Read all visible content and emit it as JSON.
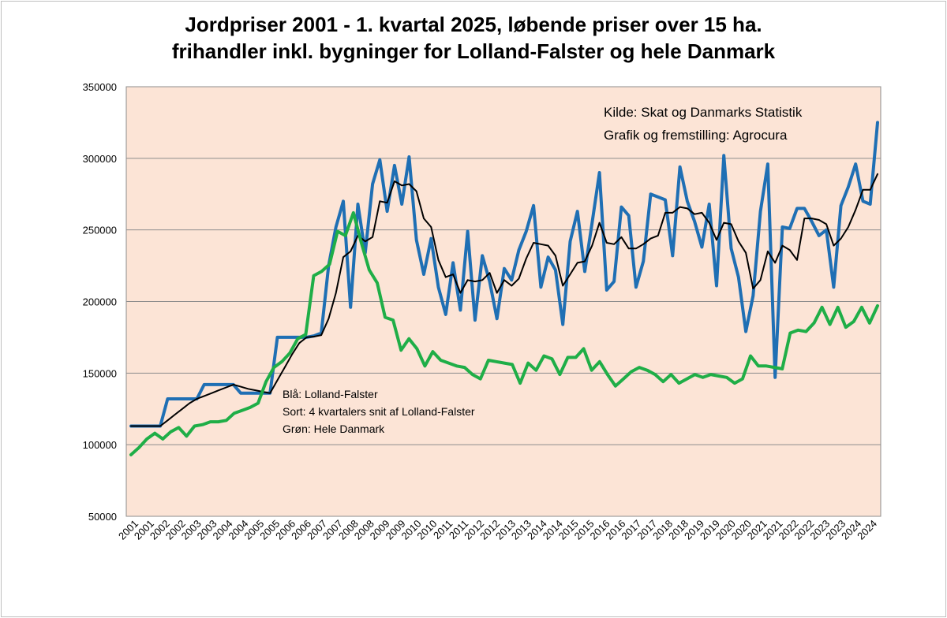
{
  "chart_data": {
    "type": "line",
    "title_line1": "Jordpriser 2001 - 1. kvartal 2025, løbende priser over 15 ha.",
    "title_line2": "frihandler inkl. bygninger for Lolland-Falster og hele Danmark",
    "xlabel": "",
    "ylabel": "",
    "ylim": [
      50000,
      350000
    ],
    "yticks": [
      50000,
      100000,
      150000,
      200000,
      250000,
      300000,
      350000
    ],
    "grid": true,
    "plot_background": "#fce4d6",
    "x_tick_labels": [
      "2001",
      "2001",
      "2002",
      "2002",
      "2003",
      "2003",
      "2004",
      "2004",
      "2005",
      "2005",
      "2006",
      "2006",
      "2007",
      "2007",
      "2008",
      "2008",
      "2009",
      "2009",
      "2010",
      "2010",
      "2011",
      "2011",
      "2012",
      "2012",
      "2013",
      "2013",
      "2014",
      "2014",
      "2015",
      "2015",
      "2016",
      "2016",
      "2017",
      "2017",
      "2018",
      "2018",
      "2019",
      "2019",
      "2020",
      "2020",
      "2021",
      "2021",
      "2022",
      "2022",
      "2023",
      "2023",
      "2024",
      "2024"
    ],
    "annotations": {
      "source": "Kilde: Skat og Danmarks Statistik",
      "credit": "Grafik og fremstilling: Agrocura"
    },
    "legend_text": [
      "Blå: Lolland-Falster",
      "Sort: 4 kvartalers snit af Lolland-Falster",
      "Grøn: Hele Danmark"
    ],
    "series": [
      {
        "color": "#1f6fb4",
        "stroke_width": 4,
        "values": [
          113000,
          113000,
          113000,
          113000,
          113000,
          132000,
          132000,
          132000,
          132000,
          132000,
          142000,
          142000,
          142000,
          142000,
          142000,
          136000,
          136000,
          136000,
          136000,
          136000,
          175000,
          175000,
          175000,
          175000,
          175000,
          176000,
          178000,
          225000,
          252000,
          270000,
          196000,
          268000,
          234000,
          282000,
          299000,
          263000,
          295000,
          268000,
          301000,
          243000,
          219000,
          244000,
          210000,
          191000,
          227000,
          194000,
          249000,
          187000,
          232000,
          214000,
          188000,
          223000,
          215000,
          236000,
          249000,
          267000,
          210000,
          231000,
          222000,
          184000,
          242000,
          263000,
          221000,
          255000,
          290000,
          208000,
          214000,
          266000,
          260000,
          210000,
          228000,
          275000,
          273000,
          271000,
          232000,
          294000,
          270000,
          256000,
          238000,
          268000,
          211000,
          302000,
          237000,
          217000,
          179000,
          204000,
          263000,
          296000,
          147000,
          252000,
          251000,
          265000,
          265000,
          256000,
          246000,
          250000,
          210000,
          267000,
          280000,
          296000,
          270000,
          268000,
          325000
        ]
      },
      {
        "color": "#000000",
        "stroke_width": 2,
        "values": [
          113000,
          113000,
          113000,
          113000,
          113000,
          117000,
          121000,
          125000,
          129000,
          132000,
          134000,
          136000,
          138000,
          140000,
          142000,
          140500,
          139000,
          138000,
          137000,
          136000,
          145000,
          154000,
          163000,
          171000,
          175000,
          175500,
          176500,
          188000,
          206000,
          231000,
          235000,
          246000,
          242000,
          245000,
          270000,
          269000,
          284000,
          281000,
          282000,
          277000,
          258000,
          252000,
          229000,
          217000,
          219000,
          206000,
          215000,
          214000,
          215000,
          220000,
          206000,
          215000,
          211000,
          216000,
          230000,
          241000,
          240000,
          239000,
          232000,
          211000,
          219000,
          227000,
          228000,
          239000,
          255000,
          241000,
          240000,
          245000,
          237000,
          237000,
          240000,
          244000,
          246000,
          262000,
          262000,
          266000,
          265000,
          261000,
          262000,
          255000,
          243000,
          255000,
          254000,
          242000,
          234000,
          209000,
          215000,
          235000,
          227000,
          239000,
          236000,
          229000,
          258000,
          258000,
          257000,
          254000,
          239000,
          244000,
          252000,
          264000,
          278000,
          278000,
          289000
        ]
      },
      {
        "color": "#1fae47",
        "stroke_width": 4,
        "values": [
          93000,
          98000,
          104000,
          108000,
          104000,
          109000,
          112000,
          106000,
          113000,
          114000,
          116000,
          116000,
          117000,
          122000,
          124000,
          126000,
          129000,
          144000,
          154000,
          158000,
          164000,
          174000,
          177000,
          218000,
          221000,
          226000,
          249000,
          246000,
          262000,
          241000,
          222000,
          213000,
          189000,
          187000,
          166000,
          174000,
          167000,
          155000,
          165000,
          159000,
          157000,
          155000,
          154000,
          149000,
          146000,
          159000,
          158000,
          157000,
          156000,
          143000,
          157000,
          152000,
          162000,
          160000,
          149000,
          161000,
          161000,
          167000,
          152000,
          158000,
          149000,
          141000,
          146000,
          151000,
          154000,
          152000,
          149000,
          144000,
          149000,
          143000,
          146000,
          149000,
          147000,
          149000,
          148000,
          147000,
          143000,
          146000,
          162000,
          155000,
          155000,
          154000,
          153000,
          178000,
          180000,
          179000,
          185000,
          196000,
          184000,
          196000,
          182000,
          186000,
          196000,
          185000,
          197000
        ]
      }
    ]
  }
}
